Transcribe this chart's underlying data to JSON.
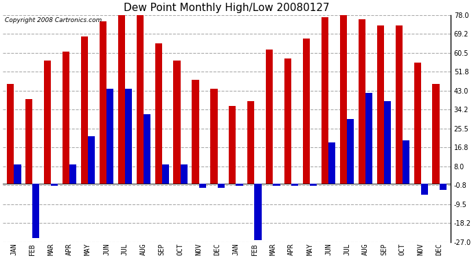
{
  "title": "Dew Point Monthly High/Low 20080127",
  "copyright": "Copyright 2008 Cartronics.com",
  "yticks": [
    78.0,
    69.2,
    60.5,
    51.8,
    43.0,
    34.2,
    25.5,
    16.8,
    8.0,
    -0.8,
    -9.5,
    -18.2,
    -27.0
  ],
  "ylim": [
    -27.0,
    78.0
  ],
  "months": [
    "JAN",
    "FEB",
    "MAR",
    "APR",
    "MAY",
    "JUN",
    "JUL",
    "AUG",
    "SEP",
    "OCT",
    "NOV",
    "DEC",
    "JAN",
    "FEB",
    "MAR",
    "APR",
    "MAY",
    "JUN",
    "JUL",
    "AUG",
    "SEP",
    "OCT",
    "NOV",
    "DEC"
  ],
  "highs": [
    46.0,
    39.0,
    57.0,
    61.0,
    68.0,
    75.0,
    79.0,
    79.0,
    65.0,
    57.0,
    48.0,
    44.0,
    36.0,
    38.0,
    62.0,
    58.0,
    67.0,
    77.0,
    79.0,
    76.0,
    73.0,
    73.0,
    56.0,
    46.0
  ],
  "lows": [
    9.0,
    -25.0,
    -1.0,
    9.0,
    22.0,
    44.0,
    44.0,
    32.0,
    9.0,
    9.0,
    -2.0,
    -2.0,
    -1.0,
    -26.0,
    -1.0,
    -1.0,
    -1.0,
    19.0,
    30.0,
    42.0,
    38.0,
    20.0,
    -5.0,
    -3.0
  ],
  "bar_color_high": "#cc0000",
  "bar_color_low": "#0000cc",
  "background_color": "#ffffff",
  "grid_color": "#aaaaaa",
  "bar_width": 0.38,
  "group_width": 1.0,
  "figwidth": 6.9,
  "figheight": 3.75,
  "dpi": 100,
  "title_fontsize": 11,
  "tick_fontsize": 7,
  "copyright_fontsize": 6.5
}
